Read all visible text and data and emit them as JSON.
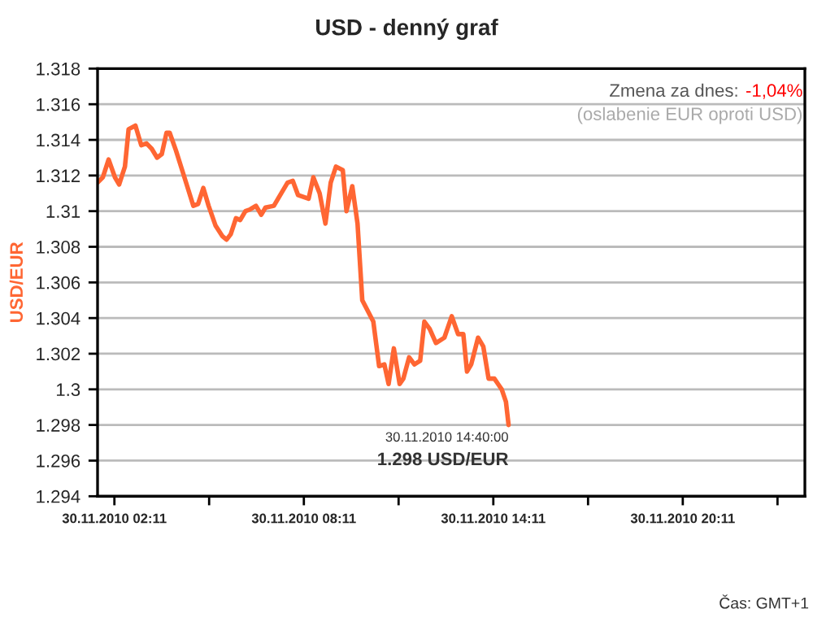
{
  "chart_data": {
    "type": "line",
    "title": "USD - denný graf",
    "ylabel": "USD/EUR",
    "x": [
      "2010-11-30T01:39",
      "2010-11-30T01:49",
      "2010-11-30T02:00",
      "2010-11-30T02:12",
      "2010-11-30T02:20",
      "2010-11-30T02:31",
      "2010-11-30T02:38",
      "2010-11-30T02:51",
      "2010-11-30T03:02",
      "2010-11-30T03:12",
      "2010-11-30T03:22",
      "2010-11-30T03:32",
      "2010-11-30T03:41",
      "2010-11-30T03:50",
      "2010-11-30T03:56",
      "2010-11-30T04:08",
      "2010-11-30T04:24",
      "2010-11-30T04:41",
      "2010-11-30T04:50",
      "2010-11-30T05:00",
      "2010-11-30T05:10",
      "2010-11-30T05:23",
      "2010-11-30T05:36",
      "2010-11-30T05:44",
      "2010-11-30T05:52",
      "2010-11-30T06:02",
      "2010-11-30T06:10",
      "2010-11-30T06:20",
      "2010-11-30T06:29",
      "2010-11-30T06:40",
      "2010-11-30T06:50",
      "2010-11-30T06:58",
      "2010-11-30T07:14",
      "2010-11-30T07:24",
      "2010-11-30T07:40",
      "2010-11-30T07:50",
      "2010-11-30T08:00",
      "2010-11-30T08:10",
      "2010-11-30T08:20",
      "2010-11-30T08:29",
      "2010-11-30T08:41",
      "2010-11-30T08:52",
      "2010-11-30T09:02",
      "2010-11-30T09:12",
      "2010-11-30T09:25",
      "2010-11-30T09:32",
      "2010-11-30T09:43",
      "2010-11-30T09:53",
      "2010-11-30T10:02",
      "2010-11-30T10:23",
      "2010-11-30T10:34",
      "2010-11-30T10:44",
      "2010-11-30T10:52",
      "2010-11-30T11:02",
      "2010-11-30T11:13",
      "2010-11-30T11:20",
      "2010-11-30T11:31",
      "2010-11-30T11:41",
      "2010-11-30T11:52",
      "2010-11-30T12:00",
      "2010-11-30T12:10",
      "2010-11-30T12:22",
      "2010-11-30T12:38",
      "2010-11-30T12:52",
      "2010-11-30T13:04",
      "2010-11-30T13:14",
      "2010-11-30T13:21",
      "2010-11-30T13:29",
      "2010-11-30T13:42",
      "2010-11-30T13:52",
      "2010-11-30T14:02",
      "2010-11-30T14:13",
      "2010-11-30T14:20",
      "2010-11-30T14:27",
      "2010-11-30T14:35",
      "2010-11-30T14:40"
    ],
    "series": [
      {
        "color": "#ff6633",
        "values": [
          1.3116,
          1.3119,
          1.3129,
          1.3119,
          1.3115,
          1.3125,
          1.3146,
          1.3148,
          1.3137,
          1.3138,
          1.3135,
          1.313,
          1.3132,
          1.3144,
          1.3144,
          1.3134,
          1.3119,
          1.3103,
          1.3104,
          1.3113,
          1.3103,
          1.3092,
          1.3086,
          1.3084,
          1.3087,
          1.3096,
          1.3095,
          1.31,
          1.3101,
          1.3103,
          1.3098,
          1.3102,
          1.3103,
          1.3108,
          1.3116,
          1.3117,
          1.3109,
          1.3108,
          1.3107,
          1.3119,
          1.311,
          1.3093,
          1.3116,
          1.3125,
          1.3123,
          1.31,
          1.3114,
          1.3093,
          1.305,
          1.3038,
          1.3013,
          1.3014,
          1.3003,
          1.3023,
          1.3003,
          1.3006,
          1.3018,
          1.3014,
          1.3016,
          1.3038,
          1.3034,
          1.3026,
          1.3029,
          1.3041,
          1.3031,
          1.3031,
          1.301,
          1.3014,
          1.3029,
          1.3024,
          1.3006,
          1.3006,
          1.3003,
          1.3,
          1.2993,
          1.298
        ]
      }
    ],
    "xlim": [
      "2010-11-30T01:39",
      "2010-12-01T00:03"
    ],
    "xticks": [
      {
        "value": "2010-11-30T02:11",
        "label": "30.11.2010 02:11"
      },
      {
        "value": "2010-11-30T05:11",
        "label": null
      },
      {
        "value": "2010-11-30T08:11",
        "label": "30.11.2010 08:11"
      },
      {
        "value": "2010-11-30T11:11",
        "label": null
      },
      {
        "value": "2010-11-30T14:11",
        "label": "30.11.2010 14:11"
      },
      {
        "value": "2010-11-30T17:11",
        "label": null
      },
      {
        "value": "2010-11-30T20:11",
        "label": "30.11.2010 20:11"
      },
      {
        "value": "2010-11-30T23:11",
        "label": null
      }
    ],
    "ylim": [
      1.294,
      1.318
    ],
    "yticks": [
      1.294,
      1.296,
      1.298,
      1.3,
      1.302,
      1.304,
      1.306,
      1.308,
      1.31,
      1.312,
      1.314,
      1.316,
      1.318
    ],
    "grid": "y",
    "legend": false,
    "marker": "none",
    "line_style": "solid",
    "annotations": [
      "Zmena za dnes:",
      "-1,04%",
      "(oslabenie EUR oproti USD)",
      {
        "text": "30.11.2010 14:40:00",
        "x": "2010-11-30T14:40",
        "y": 1.298
      },
      {
        "text": "1.298 USD/EUR",
        "x": "2010-11-30T14:40",
        "y": 1.298
      },
      "Čas: GMT+1"
    ]
  }
}
